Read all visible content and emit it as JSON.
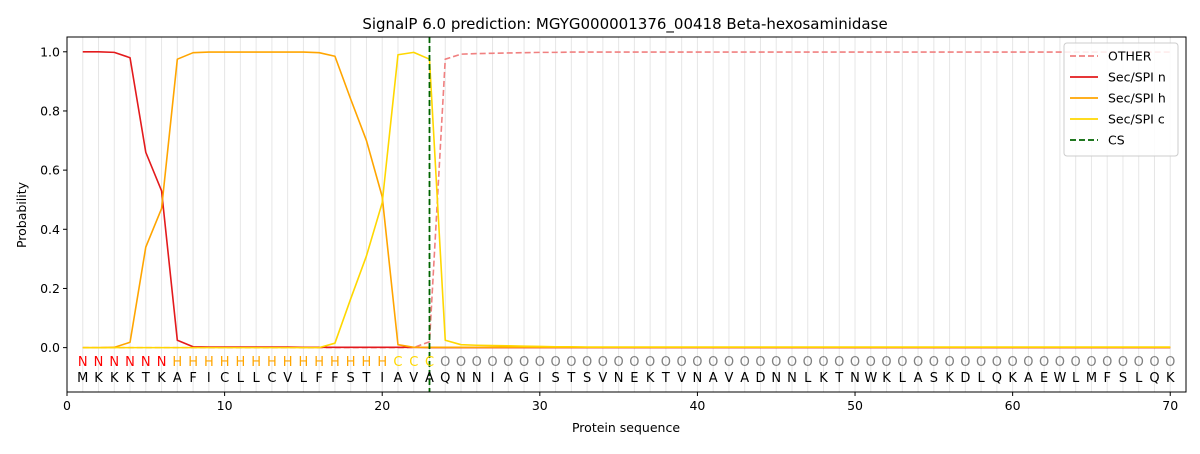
{
  "chart_data": {
    "type": "line",
    "title": "SignalP 6.0 prediction: MGYG000001376_00418 Beta-hexosaminidase",
    "xlabel": "Protein sequence",
    "ylabel": "Probability",
    "xlim": [
      0,
      71
    ],
    "ylim": [
      -0.15,
      1.05
    ],
    "xticks": [
      0,
      10,
      20,
      30,
      40,
      50,
      60,
      70
    ],
    "yticks": [
      0.0,
      0.2,
      0.4,
      0.6,
      0.8,
      1.0
    ],
    "xtick_labels": [
      "0",
      "10",
      "20",
      "30",
      "40",
      "50",
      "60",
      "70"
    ],
    "ytick_labels": [
      "0.0",
      "0.2",
      "0.4",
      "0.6",
      "0.8",
      "1.0"
    ],
    "legend_position": "top-right",
    "sequence": [
      "M",
      "K",
      "K",
      "K",
      "T",
      "K",
      "A",
      "F",
      "I",
      "C",
      "L",
      "L",
      "C",
      "V",
      "L",
      "F",
      "F",
      "S",
      "T",
      "I",
      "A",
      "V",
      "A",
      "Q",
      "N",
      "N",
      "I",
      "A",
      "G",
      "I",
      "S",
      "T",
      "S",
      "V",
      "N",
      "E",
      "K",
      "T",
      "V",
      "N",
      "A",
      "V",
      "A",
      "D",
      "N",
      "N",
      "L",
      "K",
      "T",
      "N",
      "W",
      "K",
      "L",
      "A",
      "S",
      "K",
      "D",
      "L",
      "Q",
      "K",
      "A",
      "E",
      "W",
      "L",
      "M",
      "F",
      "S",
      "L",
      "Q",
      "K"
    ],
    "region_labels": [
      "N",
      "N",
      "N",
      "N",
      "N",
      "N",
      "H",
      "H",
      "H",
      "H",
      "H",
      "H",
      "H",
      "H",
      "H",
      "H",
      "H",
      "H",
      "H",
      "H",
      "C",
      "C",
      "C",
      "O",
      "O",
      "O",
      "O",
      "O",
      "O",
      "O",
      "O",
      "O",
      "O",
      "O",
      "O",
      "O",
      "O",
      "O",
      "O",
      "O",
      "O",
      "O",
      "O",
      "O",
      "O",
      "O",
      "O",
      "O",
      "O",
      "O",
      "O",
      "O",
      "O",
      "O",
      "O",
      "O",
      "O",
      "O",
      "O",
      "O",
      "O",
      "O",
      "O",
      "O",
      "O",
      "O",
      "O",
      "O",
      "O",
      "O"
    ],
    "region_colors": {
      "N": "#ff0000",
      "H": "#ffa500",
      "C": "#ffd700",
      "O": "#808080"
    },
    "cs_position": 23,
    "series": [
      {
        "name": "OTHER",
        "color": "#f08080",
        "dash": true,
        "values": [
          0,
          0,
          0,
          0,
          0,
          0,
          0,
          0,
          0,
          0,
          0,
          0,
          0,
          0,
          0,
          0,
          0,
          0,
          0,
          0,
          0,
          0,
          0.02,
          0.975,
          0.992,
          0.994,
          0.995,
          0.996,
          0.997,
          0.998,
          0.998,
          0.999,
          0.999,
          0.999,
          0.999,
          0.999,
          0.999,
          0.999,
          0.999,
          0.999,
          0.999,
          0.999,
          0.999,
          0.999,
          0.999,
          0.999,
          0.999,
          0.999,
          0.999,
          0.999,
          0.999,
          0.999,
          0.999,
          0.999,
          0.999,
          0.999,
          0.999,
          0.999,
          0.999,
          0.999,
          0.999,
          0.999,
          0.999,
          0.999,
          0.999,
          0.999,
          0.999,
          0.999,
          0.999,
          0.999
        ]
      },
      {
        "name": "Sec/SPI n",
        "color": "#e31a1c",
        "dash": false,
        "values": [
          1.0,
          1.0,
          0.998,
          0.98,
          0.66,
          0.53,
          0.025,
          0.003,
          0.002,
          0.002,
          0.002,
          0.002,
          0.002,
          0.002,
          0.001,
          0.001,
          0.001,
          0.001,
          0.001,
          0.001,
          0.001,
          0.001,
          0.0,
          0,
          0,
          0,
          0,
          0,
          0,
          0,
          0,
          0,
          0,
          0,
          0,
          0,
          0,
          0,
          0,
          0,
          0,
          0,
          0,
          0,
          0,
          0,
          0,
          0,
          0,
          0,
          0,
          0,
          0,
          0,
          0,
          0,
          0,
          0,
          0,
          0,
          0,
          0,
          0,
          0,
          0,
          0,
          0,
          0,
          0,
          0
        ]
      },
      {
        "name": "Sec/SPI h",
        "color": "#ffa500",
        "dash": false,
        "values": [
          0,
          0,
          0.001,
          0.018,
          0.34,
          0.47,
          0.975,
          0.997,
          0.999,
          0.999,
          0.999,
          0.999,
          0.999,
          0.999,
          0.999,
          0.997,
          0.985,
          0.84,
          0.7,
          0.51,
          0.01,
          0.001,
          0.001,
          0.001,
          0.001,
          0.001,
          0.001,
          0.001,
          0.001,
          0.001,
          0.001,
          0.001,
          0.001,
          0.001,
          0.001,
          0.001,
          0.001,
          0.001,
          0.001,
          0.001,
          0.001,
          0.001,
          0.001,
          0.001,
          0.001,
          0.001,
          0.001,
          0.001,
          0.001,
          0.001,
          0.001,
          0.001,
          0.001,
          0.001,
          0.001,
          0.001,
          0.001,
          0.001,
          0.001,
          0.001,
          0.001,
          0.001,
          0.001,
          0.001,
          0.001,
          0.001,
          0.001,
          0.001,
          0.001,
          0.001
        ]
      },
      {
        "name": "Sec/SPI c",
        "color": "#ffd700",
        "dash": false,
        "values": [
          0,
          0,
          0,
          0,
          0,
          0,
          0,
          0,
          0,
          0,
          0,
          0,
          0,
          0,
          0,
          0,
          0.015,
          0.165,
          0.31,
          0.49,
          0.99,
          0.998,
          0.975,
          0.025,
          0.01,
          0.008,
          0.007,
          0.006,
          0.005,
          0.004,
          0.003,
          0.003,
          0.002,
          0.002,
          0.002,
          0.002,
          0.002,
          0.002,
          0.002,
          0.002,
          0.002,
          0.002,
          0.002,
          0.002,
          0.002,
          0.002,
          0.002,
          0.002,
          0.002,
          0.002,
          0.002,
          0.002,
          0.002,
          0.002,
          0.002,
          0.002,
          0.002,
          0.002,
          0.002,
          0.002,
          0.002,
          0.002,
          0.002,
          0.002,
          0.002,
          0.002,
          0.002,
          0.002,
          0.002,
          0.002
        ]
      },
      {
        "name": "CS",
        "color": "#006400",
        "dash": true,
        "values": []
      }
    ]
  }
}
